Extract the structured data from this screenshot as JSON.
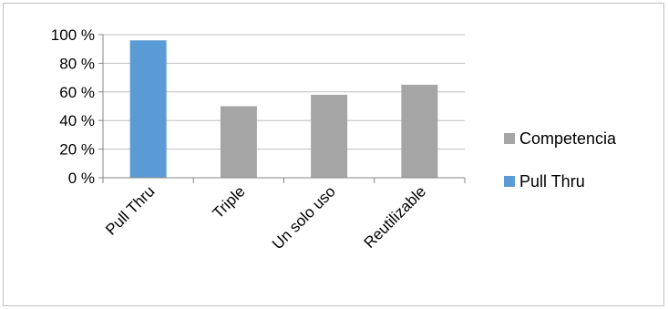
{
  "chart_data": {
    "type": "bar",
    "categories": [
      "Pull Thru",
      "Triple",
      "Un solo uso",
      "Reutilizable"
    ],
    "series": [
      {
        "name": "Pull Thru",
        "color": "#5b9bd5",
        "values": [
          96,
          null,
          null,
          null
        ]
      },
      {
        "name": "Competencia",
        "color": "#a5a5a5",
        "values": [
          null,
          50,
          58,
          65
        ]
      }
    ],
    "ylim": [
      0,
      100
    ],
    "yticks": [
      0,
      20,
      40,
      60,
      80,
      100
    ],
    "ytick_labels": [
      "0 %",
      "20 %",
      "40 %",
      "60 %",
      "80 %",
      "100 %"
    ],
    "grid": true,
    "legend": {
      "placement": "right",
      "entries": [
        {
          "label": "Competencia",
          "color": "#a5a5a5"
        },
        {
          "label": "Pull Thru",
          "color": "#5b9bd5"
        }
      ]
    },
    "title": "",
    "xlabel": "",
    "ylabel": ""
  }
}
